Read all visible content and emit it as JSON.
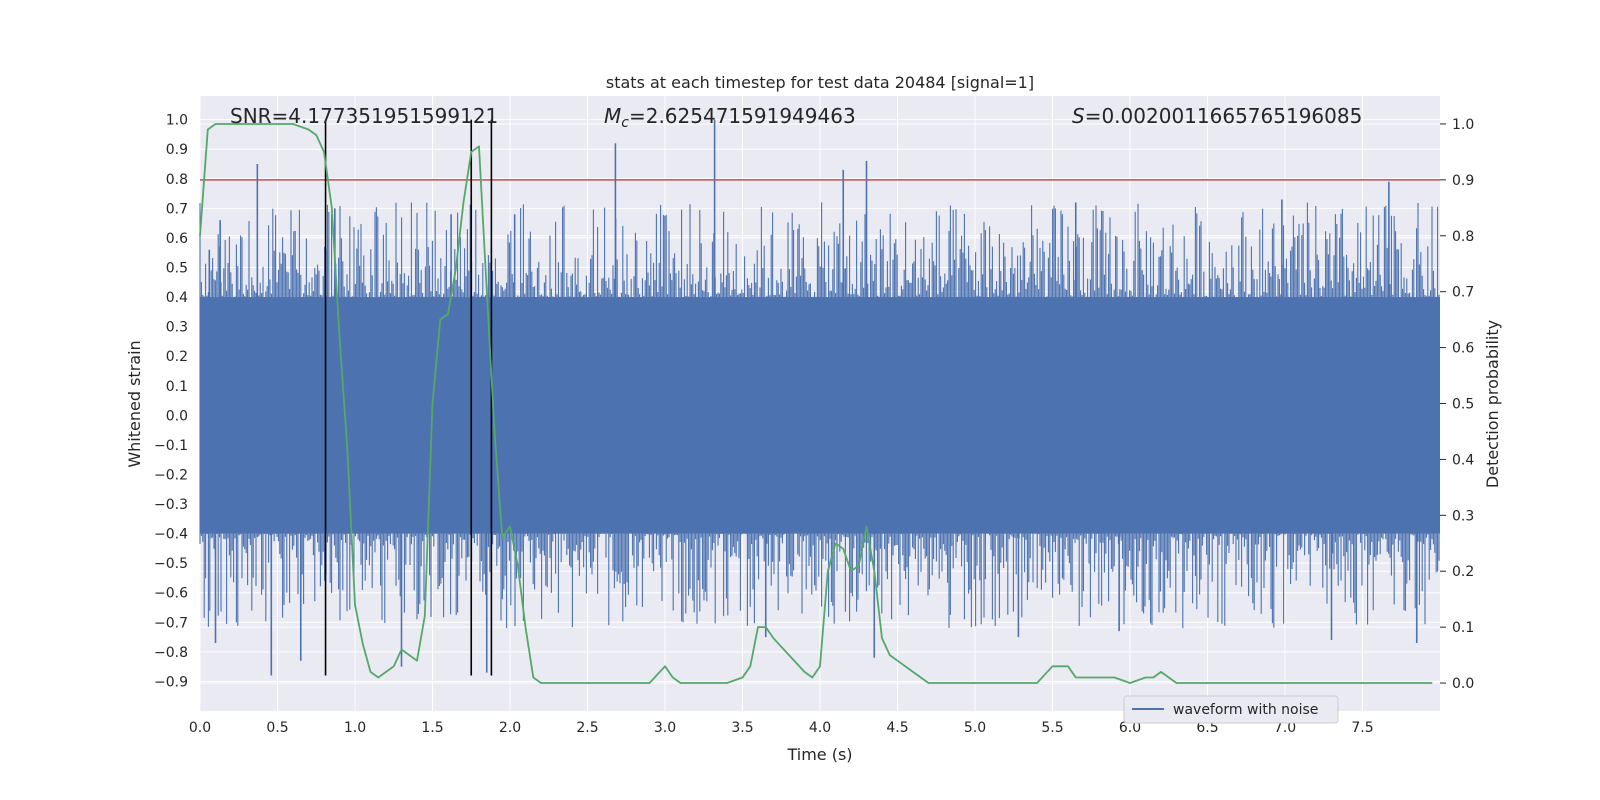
{
  "chart_data": {
    "type": "line",
    "title": "stats at each timestep for test data 20484 [signal=1]",
    "xlabel": "Time (s)",
    "ylabel": "Whitened strain",
    "ylabel_right": "Detection probability",
    "xlim": [
      0.0,
      8.0
    ],
    "ylim": [
      -1.0,
      1.08
    ],
    "ylim_right": [
      -0.05,
      1.05
    ],
    "x_ticks": [
      0.0,
      0.5,
      1.0,
      1.5,
      2.0,
      2.5,
      3.0,
      3.5,
      4.0,
      4.5,
      5.0,
      5.5,
      6.0,
      6.5,
      7.0,
      7.5
    ],
    "x_tick_labels": [
      "0.0",
      "0.5",
      "1.0",
      "1.5",
      "2.0",
      "2.5",
      "3.0",
      "3.5",
      "4.0",
      "4.5",
      "5.0",
      "5.5",
      "6.0",
      "6.5",
      "7.0",
      "7.5"
    ],
    "y_ticks": [
      1.0,
      0.9,
      0.8,
      0.7,
      0.6,
      0.5,
      0.4,
      0.3,
      0.2,
      0.1,
      0.0,
      -0.1,
      -0.2,
      -0.3,
      -0.4,
      -0.5,
      -0.6,
      -0.7,
      -0.8,
      -0.9
    ],
    "y_tick_labels": [
      "1.0",
      "0.9",
      "0.8",
      "0.7",
      "0.6",
      "0.5",
      "0.4",
      "0.3",
      "0.2",
      "0.1",
      "0.0",
      "−0.1",
      "−0.2",
      "−0.3",
      "−0.4",
      "−0.5",
      "−0.6",
      "−0.7",
      "−0.8",
      "−0.9"
    ],
    "y_right_ticks": [
      1.0,
      0.9,
      0.8,
      0.7,
      0.6,
      0.5,
      0.4,
      0.3,
      0.2,
      0.1,
      0.0
    ],
    "y_right_tick_labels": [
      "1.0",
      "0.9",
      "0.8",
      "0.7",
      "0.6",
      "0.5",
      "0.4",
      "0.3",
      "0.2",
      "0.1",
      "0.0"
    ],
    "grid": true,
    "legend_position": "lower-right",
    "annotations": {
      "snr": "SNR=4.177351951599121",
      "mc_symbol": "M",
      "mc_sub": "c",
      "mc_value": "=2.625471591949463",
      "s_symbol": "S",
      "s_value": "=0.0020011665765196085"
    },
    "threshold_right": 0.9,
    "vertical_lines": {
      "x": [
        0.81,
        1.75,
        1.88
      ],
      "y_range": [
        -0.88,
        1.0
      ]
    },
    "series": [
      {
        "name": "waveform with noise",
        "color": "#4c72b0",
        "kind": "noise_band",
        "core_band": [
          -0.4,
          0.4
        ],
        "spikes": [
          {
            "x": 0.06,
            "y": 0.56
          },
          {
            "x": 0.1,
            "y": -0.77
          },
          {
            "x": 0.13,
            "y": 0.66
          },
          {
            "x": 0.37,
            "y": 0.85
          },
          {
            "x": 0.46,
            "y": -0.88
          },
          {
            "x": 0.65,
            "y": -0.83
          },
          {
            "x": 0.87,
            "y": 0.7
          },
          {
            "x": 1.3,
            "y": -0.85
          },
          {
            "x": 1.62,
            "y": 0.68
          },
          {
            "x": 1.85,
            "y": -0.87
          },
          {
            "x": 2.03,
            "y": 0.68
          },
          {
            "x": 2.68,
            "y": 0.92
          },
          {
            "x": 3.32,
            "y": 1.0
          },
          {
            "x": 3.65,
            "y": -0.75
          },
          {
            "x": 4.15,
            "y": 0.83
          },
          {
            "x": 4.3,
            "y": 0.86
          },
          {
            "x": 4.35,
            "y": -0.82
          },
          {
            "x": 5.28,
            "y": -0.75
          },
          {
            "x": 5.65,
            "y": 0.72
          },
          {
            "x": 5.93,
            "y": -0.73
          },
          {
            "x": 6.98,
            "y": 0.73
          },
          {
            "x": 7.3,
            "y": -0.76
          },
          {
            "x": 7.67,
            "y": 0.79
          },
          {
            "x": 7.85,
            "y": -0.77
          }
        ]
      },
      {
        "name": "",
        "color": "#55a868",
        "axis": "right",
        "x": [
          0.0,
          0.05,
          0.1,
          0.2,
          0.4,
          0.6,
          0.7,
          0.75,
          0.8,
          0.85,
          0.9,
          0.95,
          1.0,
          1.05,
          1.1,
          1.15,
          1.2,
          1.25,
          1.3,
          1.35,
          1.4,
          1.45,
          1.5,
          1.55,
          1.6,
          1.65,
          1.7,
          1.75,
          1.8,
          1.85,
          1.9,
          1.95,
          2.0,
          2.05,
          2.1,
          2.15,
          2.2,
          2.25,
          2.3,
          2.4,
          2.5,
          2.6,
          2.7,
          2.8,
          2.9,
          3.0,
          3.05,
          3.1,
          3.15,
          3.2,
          3.3,
          3.4,
          3.5,
          3.55,
          3.6,
          3.65,
          3.7,
          3.8,
          3.9,
          3.95,
          4.0,
          4.05,
          4.1,
          4.15,
          4.2,
          4.25,
          4.3,
          4.35,
          4.4,
          4.45,
          4.5,
          4.55,
          4.6,
          4.65,
          4.7,
          4.75,
          4.8,
          4.9,
          5.0,
          5.2,
          5.4,
          5.5,
          5.55,
          5.6,
          5.65,
          5.7,
          5.8,
          5.9,
          6.0,
          6.1,
          6.15,
          6.2,
          6.25,
          6.3,
          6.4,
          6.5,
          6.6,
          6.8,
          7.0,
          7.2,
          7.4,
          7.5,
          7.6,
          7.8,
          7.95
        ],
        "y": [
          0.8,
          0.99,
          1.0,
          1.0,
          1.0,
          1.0,
          0.99,
          0.98,
          0.95,
          0.85,
          0.62,
          0.42,
          0.14,
          0.07,
          0.02,
          0.01,
          0.02,
          0.03,
          0.06,
          0.05,
          0.04,
          0.12,
          0.5,
          0.65,
          0.66,
          0.74,
          0.86,
          0.95,
          0.96,
          0.7,
          0.45,
          0.26,
          0.28,
          0.21,
          0.1,
          0.01,
          0.0,
          0.0,
          0.0,
          0.0,
          0.0,
          0.0,
          0.0,
          0.0,
          0.0,
          0.03,
          0.01,
          0.0,
          0.0,
          0.0,
          0.0,
          0.0,
          0.01,
          0.03,
          0.1,
          0.1,
          0.08,
          0.05,
          0.02,
          0.01,
          0.03,
          0.2,
          0.25,
          0.24,
          0.2,
          0.21,
          0.28,
          0.2,
          0.08,
          0.05,
          0.04,
          0.03,
          0.02,
          0.01,
          0.0,
          0.0,
          0.0,
          0.0,
          0.0,
          0.0,
          0.0,
          0.03,
          0.03,
          0.03,
          0.01,
          0.01,
          0.01,
          0.01,
          0.0,
          0.01,
          0.01,
          0.02,
          0.01,
          0.0,
          0.0,
          0.0,
          0.0,
          0.0,
          0.0,
          0.0,
          0.0,
          0.0,
          0.0,
          0.0,
          0.0
        ]
      }
    ],
    "colors": {
      "background": "#eaeaf2",
      "grid": "#ffffff",
      "threshold": "#c44e52",
      "vlines": "#000000"
    }
  }
}
